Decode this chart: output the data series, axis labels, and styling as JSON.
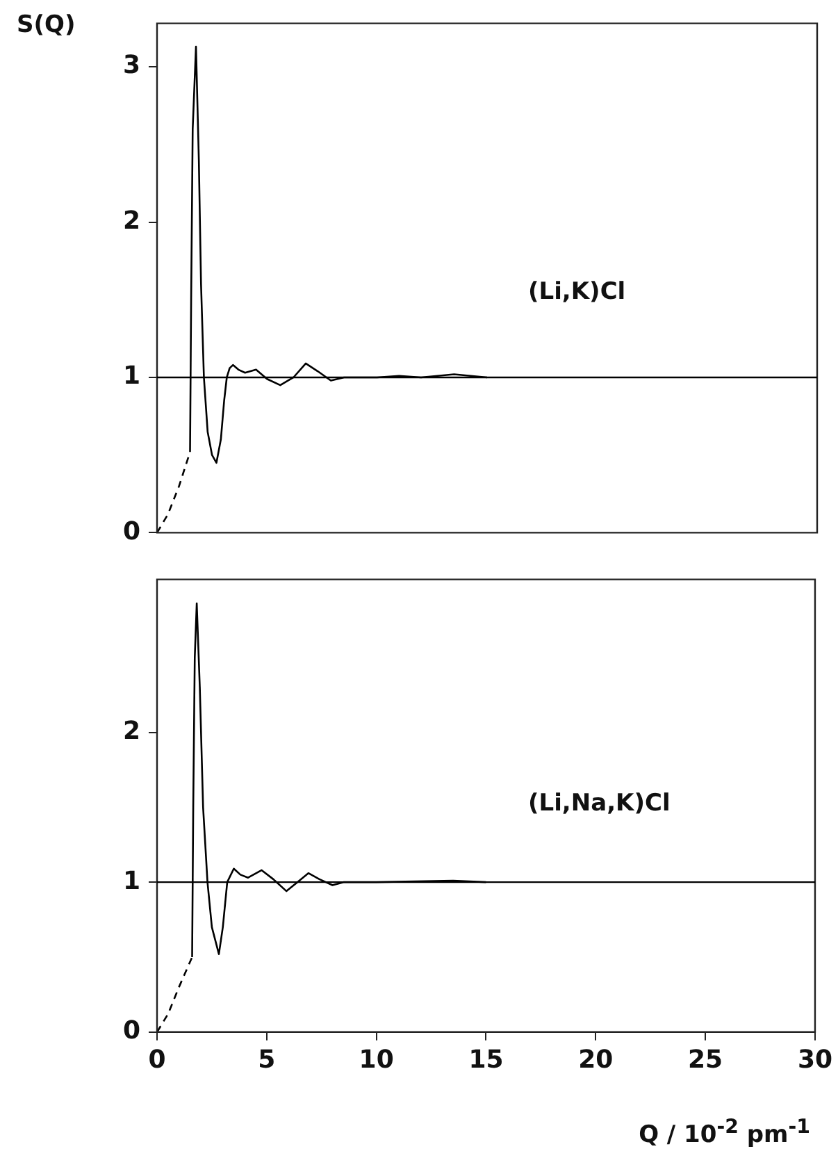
{
  "chart_data": [
    {
      "type": "line",
      "ylabel": "S(Q)",
      "xlim": [
        0,
        30
      ],
      "ylim": [
        0,
        3.28
      ],
      "yticks": [
        0,
        1,
        2,
        3
      ],
      "tick_labels": "y",
      "grid": false,
      "legend": false,
      "marker": "none",
      "annotations": [
        "(Li,K)Cl"
      ],
      "ref_lines": [
        {
          "axis": "y",
          "value": 1,
          "color": "#000000",
          "line_style": "solid"
        }
      ],
      "series": [
        {
          "color": "#000000",
          "line_style": "dashed",
          "x": [
            0,
            0.5,
            1.0,
            1.5
          ],
          "values": [
            0,
            0.12,
            0.3,
            0.52
          ]
        },
        {
          "color": "#000000",
          "line_style": "solid",
          "x": [
            1.5,
            1.55,
            1.62,
            1.77,
            1.9,
            2.0,
            2.13,
            2.3,
            2.5,
            2.7,
            2.9,
            3.05,
            3.17,
            3.3,
            3.45,
            3.7,
            4.0,
            4.5,
            5.0,
            5.6,
            6.2,
            6.76,
            7.3,
            7.9,
            8.5,
            10,
            11,
            12,
            13.5,
            15
          ],
          "values": [
            0.52,
            1.5,
            2.6,
            3.13,
            2.4,
            1.6,
            1.0,
            0.65,
            0.5,
            0.45,
            0.6,
            0.85,
            1.0,
            1.06,
            1.08,
            1.05,
            1.03,
            1.05,
            0.99,
            0.95,
            1.0,
            1.09,
            1.04,
            0.98,
            1.0,
            1.0,
            1.01,
            1.0,
            1.02,
            1.0
          ]
        }
      ]
    },
    {
      "type": "line",
      "xlabel": "Q / 10$^{-2}$ pm$^{-1}$",
      "xlim": [
        0,
        30
      ],
      "xticks": [
        0,
        5,
        10,
        15,
        20,
        25,
        30
      ],
      "ylim": [
        0,
        3.02
      ],
      "yticks": [
        0,
        1,
        2
      ],
      "grid": false,
      "legend": false,
      "marker": "none",
      "annotations": [
        "(Li,Na,K)Cl"
      ],
      "ref_lines": [
        {
          "axis": "y",
          "value": 1,
          "color": "#000000",
          "line_style": "solid"
        }
      ],
      "series": [
        {
          "color": "#000000",
          "line_style": "dashed",
          "x": [
            0,
            0.5,
            1.0,
            1.6
          ],
          "values": [
            0,
            0.12,
            0.3,
            0.5
          ]
        },
        {
          "color": "#000000",
          "line_style": "solid",
          "x": [
            1.6,
            1.65,
            1.72,
            1.81,
            1.95,
            2.1,
            2.3,
            2.5,
            2.82,
            3.0,
            3.2,
            3.5,
            3.8,
            4.15,
            4.77,
            5.3,
            5.9,
            6.4,
            6.9,
            7.4,
            8.0,
            8.5,
            10,
            13.5,
            15
          ],
          "values": [
            0.5,
            1.5,
            2.5,
            2.86,
            2.3,
            1.5,
            1.0,
            0.7,
            0.52,
            0.7,
            1.0,
            1.09,
            1.05,
            1.03,
            1.08,
            1.02,
            0.94,
            1.0,
            1.06,
            1.02,
            0.98,
            1.0,
            1.0,
            1.01,
            1.0
          ]
        }
      ]
    }
  ]
}
